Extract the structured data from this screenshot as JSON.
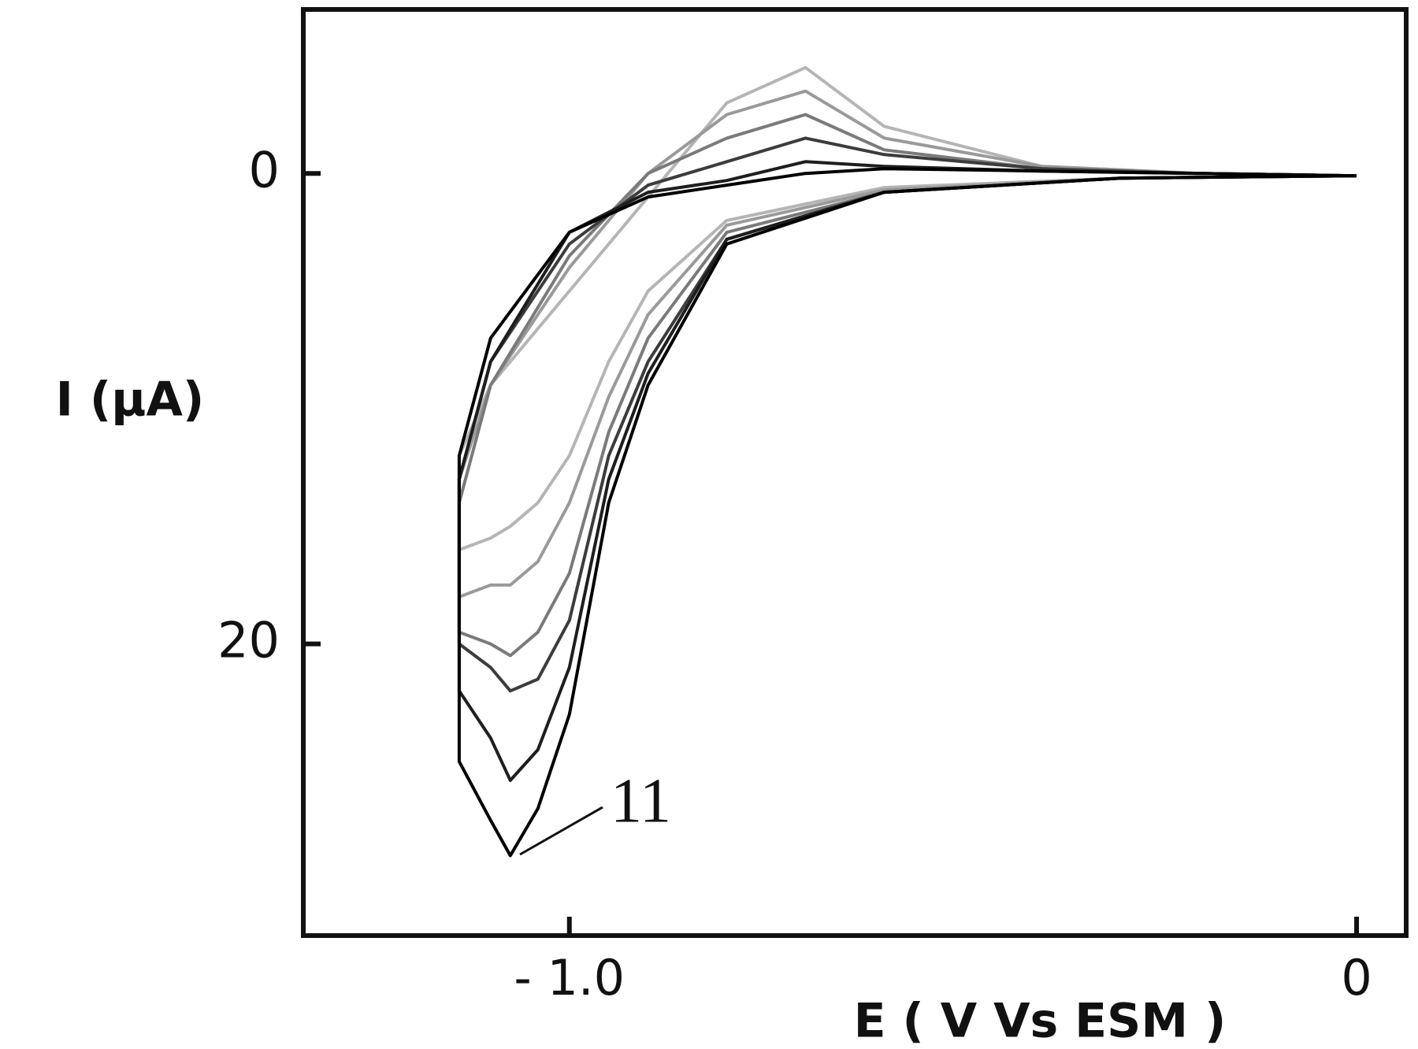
{
  "chart_data": {
    "type": "line",
    "x_label": "E ( V Vs ESM )",
    "y_label": "I (μA)",
    "annotation": "11",
    "xlim": [
      -1.338,
      0.063
    ],
    "ylim": [
      -6.97,
      32.4
    ],
    "y_inverted": true,
    "xticks": [
      {
        "value": -1.0,
        "label": "- 1.0"
      },
      0
    ],
    "yticks": [
      0,
      20
    ],
    "grid": false,
    "series": [
      {
        "color": "#b5b5b5",
        "x": [
          0,
          -0.3,
          -0.6,
          -0.8,
          -0.9,
          -0.95,
          -1.0,
          -1.04,
          -1.075,
          -1.1,
          -1.14,
          -1.14,
          -1.1,
          -1.0,
          -0.9,
          -0.8,
          -0.7,
          -0.6,
          -0.4,
          -0.2,
          0
        ],
        "values": [
          0.1,
          0.2,
          0.6,
          2,
          5,
          8,
          12,
          14,
          15,
          15.5,
          16,
          12,
          9,
          5,
          1,
          -3,
          -4.5,
          -2,
          -0.3,
          0,
          0.1
        ]
      },
      {
        "color": "#9a9a9a",
        "x": [
          0,
          -0.3,
          -0.6,
          -0.8,
          -0.9,
          -0.95,
          -1.0,
          -1.04,
          -1.075,
          -1.1,
          -1.14,
          -1.14,
          -1.1,
          -1.0,
          -0.9,
          -0.8,
          -0.7,
          -0.6,
          -0.4,
          -0.2,
          0
        ],
        "values": [
          0.1,
          0.2,
          0.7,
          2.2,
          6,
          9.5,
          14,
          16.5,
          17.5,
          17.5,
          18,
          13,
          9,
          4,
          0,
          -2.5,
          -3.5,
          -1.5,
          -0.3,
          0,
          0.1
        ]
      },
      {
        "color": "#7a7a7a",
        "x": [
          0,
          -0.3,
          -0.6,
          -0.8,
          -0.9,
          -0.95,
          -1.0,
          -1.04,
          -1.075,
          -1.1,
          -1.14,
          -1.14,
          -1.1,
          -1.0,
          -0.9,
          -0.8,
          -0.7,
          -0.6,
          -0.4,
          -0.2,
          0
        ],
        "values": [
          0.1,
          0.2,
          0.8,
          2.5,
          7,
          11,
          17,
          19.5,
          20.5,
          20,
          19.5,
          14,
          9,
          3.5,
          0,
          -1.5,
          -2.5,
          -1,
          -0.2,
          0,
          0.1
        ]
      },
      {
        "color": "#3c3c3c",
        "x": [
          0,
          -0.3,
          -0.6,
          -0.8,
          -0.9,
          -0.95,
          -1.0,
          -1.04,
          -1.075,
          -1.1,
          -1.14,
          -1.14,
          -1.1,
          -1.0,
          -0.9,
          -0.8,
          -0.7,
          -0.6,
          -0.4,
          -0.2,
          0
        ],
        "values": [
          0.1,
          0.2,
          0.8,
          2.8,
          8,
          12,
          19,
          21.5,
          22,
          21,
          20,
          13,
          8,
          3,
          0.5,
          -0.5,
          -1.5,
          -0.8,
          -0.2,
          0,
          0.1
        ]
      },
      {
        "color": "#1e1e1e",
        "x": [
          0,
          -0.3,
          -0.6,
          -0.8,
          -0.9,
          -0.95,
          -1.0,
          -1.04,
          -1.075,
          -1.1,
          -1.14,
          -1.14,
          -1.1,
          -1.0,
          -0.9,
          -0.8,
          -0.7,
          -0.6,
          -0.4,
          -0.2,
          0
        ],
        "values": [
          0.1,
          0.2,
          0.8,
          2.8,
          8.5,
          13,
          21,
          24.5,
          25.8,
          24,
          22,
          13,
          8,
          2.5,
          0.8,
          0.3,
          -0.5,
          -0.3,
          -0.1,
          0,
          0.1
        ]
      },
      {
        "color": "#000000",
        "x": [
          0,
          -0.3,
          -0.6,
          -0.8,
          -0.9,
          -0.95,
          -1.0,
          -1.04,
          -1.075,
          -1.1,
          -1.14,
          -1.14,
          -1.1,
          -1.0,
          -0.9,
          -0.8,
          -0.7,
          -0.6,
          -0.4,
          -0.2,
          0
        ],
        "values": [
          0.1,
          0.2,
          0.8,
          3,
          9,
          14,
          23,
          27,
          29,
          27.5,
          25,
          12,
          7,
          2.5,
          1,
          0.5,
          0,
          -0.2,
          -0.1,
          0,
          0.1
        ]
      }
    ]
  }
}
